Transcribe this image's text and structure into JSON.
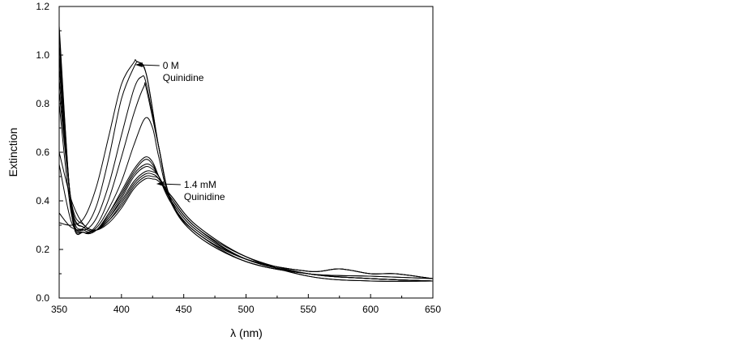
{
  "chart_data": {
    "type": "line",
    "title": "",
    "xlabel": "λ (nm)",
    "ylabel": "Extinction",
    "xlim": [
      350,
      650
    ],
    "ylim": [
      0.0,
      1.2
    ],
    "xticks": [
      350,
      400,
      450,
      500,
      550,
      600,
      650
    ],
    "xtick_labels": [
      "350",
      "400",
      "450",
      "500",
      "550",
      "600",
      "650"
    ],
    "yticks": [
      0.0,
      0.2,
      0.4,
      0.6,
      0.8,
      1.0,
      1.2
    ],
    "ytick_labels": [
      "0.0",
      "0.2",
      "0.4",
      "0.6",
      "0.8",
      "1.0",
      "1.2"
    ],
    "grid": false,
    "legend": "none",
    "line_color": "#000000",
    "annotations": [
      {
        "lines": [
          "0 M",
          "Quinidine"
        ],
        "x": 411,
        "y": 0.96
      },
      {
        "lines": [
          "1.4 mM",
          "Quinidine"
        ],
        "x": 428,
        "y": 0.47
      }
    ],
    "series": [
      {
        "x": [
          350,
          360,
          370,
          380,
          390,
          400,
          410,
          412,
          420,
          430,
          440,
          460,
          500,
          550,
          575,
          600,
          620,
          650
        ],
        "y": [
          0.31,
          0.3,
          0.33,
          0.46,
          0.67,
          0.88,
          0.97,
          0.975,
          0.92,
          0.62,
          0.4,
          0.27,
          0.16,
          0.11,
          0.12,
          0.1,
          0.1,
          0.08
        ]
      },
      {
        "x": [
          350,
          360,
          370,
          380,
          390,
          400,
          410,
          414,
          420,
          430,
          440,
          460,
          500,
          550,
          575,
          600,
          620,
          650
        ],
        "y": [
          0.35,
          0.29,
          0.29,
          0.38,
          0.58,
          0.82,
          0.95,
          0.97,
          0.92,
          0.62,
          0.4,
          0.27,
          0.16,
          0.11,
          0.12,
          0.1,
          0.1,
          0.08
        ]
      },
      {
        "x": [
          350,
          360,
          370,
          380,
          390,
          400,
          410,
          416,
          420,
          430,
          440,
          460,
          500,
          550,
          575,
          600,
          620,
          650
        ],
        "y": [
          0.55,
          0.31,
          0.28,
          0.33,
          0.47,
          0.67,
          0.86,
          0.91,
          0.88,
          0.62,
          0.4,
          0.27,
          0.16,
          0.11,
          0.12,
          0.1,
          0.1,
          0.08
        ]
      },
      {
        "x": [
          350,
          360,
          370,
          380,
          390,
          400,
          410,
          418,
          420,
          430,
          440,
          460,
          500,
          550,
          600,
          650
        ],
        "y": [
          0.8,
          0.34,
          0.27,
          0.3,
          0.41,
          0.58,
          0.76,
          0.87,
          0.86,
          0.62,
          0.4,
          0.26,
          0.15,
          0.1,
          0.09,
          0.08
        ]
      },
      {
        "x": [
          350,
          360,
          370,
          380,
          390,
          400,
          410,
          419,
          425,
          430,
          440,
          460,
          500,
          550,
          600,
          650
        ],
        "y": [
          1.0,
          0.35,
          0.27,
          0.29,
          0.37,
          0.48,
          0.63,
          0.74,
          0.7,
          0.58,
          0.39,
          0.26,
          0.15,
          0.1,
          0.09,
          0.08
        ]
      },
      {
        "x": [
          350,
          360,
          370,
          380,
          390,
          400,
          410,
          419,
          425,
          430,
          440,
          460,
          500,
          550,
          600,
          650
        ],
        "y": [
          1.12,
          0.35,
          0.27,
          0.28,
          0.35,
          0.44,
          0.53,
          0.58,
          0.56,
          0.5,
          0.39,
          0.27,
          0.15,
          0.1,
          0.08,
          0.07
        ]
      },
      {
        "x": [
          350,
          360,
          370,
          380,
          390,
          400,
          410,
          419,
          425,
          430,
          440,
          460,
          500,
          550,
          600,
          650
        ],
        "y": [
          1.1,
          0.35,
          0.27,
          0.28,
          0.35,
          0.43,
          0.52,
          0.57,
          0.55,
          0.5,
          0.4,
          0.28,
          0.16,
          0.1,
          0.08,
          0.07
        ]
      },
      {
        "x": [
          350,
          360,
          370,
          380,
          390,
          400,
          410,
          419,
          425,
          430,
          440,
          460,
          500,
          550,
          600,
          650
        ],
        "y": [
          1.05,
          0.36,
          0.28,
          0.28,
          0.34,
          0.42,
          0.51,
          0.55,
          0.54,
          0.5,
          0.4,
          0.28,
          0.16,
          0.1,
          0.08,
          0.07
        ]
      },
      {
        "x": [
          350,
          360,
          370,
          380,
          390,
          400,
          410,
          419,
          425,
          430,
          440,
          460,
          500,
          550,
          600,
          650
        ],
        "y": [
          1.0,
          0.37,
          0.28,
          0.28,
          0.33,
          0.41,
          0.5,
          0.54,
          0.53,
          0.5,
          0.41,
          0.29,
          0.16,
          0.1,
          0.08,
          0.07
        ]
      },
      {
        "x": [
          350,
          360,
          370,
          380,
          390,
          400,
          410,
          419,
          425,
          430,
          440,
          460,
          500,
          550,
          600,
          650
        ],
        "y": [
          0.95,
          0.38,
          0.29,
          0.28,
          0.33,
          0.4,
          0.48,
          0.52,
          0.52,
          0.5,
          0.41,
          0.29,
          0.16,
          0.1,
          0.08,
          0.07
        ]
      },
      {
        "x": [
          350,
          360,
          370,
          380,
          390,
          400,
          410,
          419,
          425,
          430,
          440,
          460,
          500,
          550,
          600,
          650
        ],
        "y": [
          0.9,
          0.38,
          0.29,
          0.28,
          0.32,
          0.39,
          0.47,
          0.51,
          0.51,
          0.49,
          0.41,
          0.29,
          0.17,
          0.1,
          0.08,
          0.07
        ]
      },
      {
        "x": [
          350,
          360,
          370,
          380,
          390,
          400,
          410,
          419,
          425,
          430,
          440,
          460,
          500,
          550,
          600,
          650
        ],
        "y": [
          0.85,
          0.39,
          0.3,
          0.28,
          0.32,
          0.38,
          0.46,
          0.5,
          0.5,
          0.49,
          0.42,
          0.3,
          0.17,
          0.09,
          0.07,
          0.07
        ]
      },
      {
        "x": [
          350,
          360,
          370,
          380,
          390,
          400,
          410,
          419,
          425,
          430,
          440,
          460,
          500,
          550,
          600,
          650
        ],
        "y": [
          0.6,
          0.4,
          0.3,
          0.28,
          0.31,
          0.37,
          0.45,
          0.49,
          0.49,
          0.48,
          0.42,
          0.3,
          0.17,
          0.09,
          0.07,
          0.07
        ]
      }
    ]
  }
}
